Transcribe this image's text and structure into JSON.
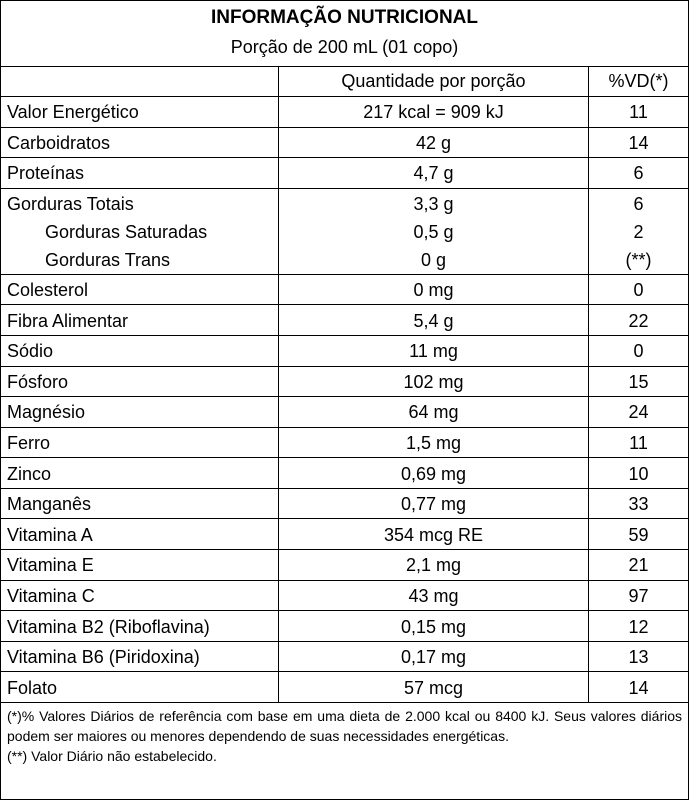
{
  "header": {
    "title": "INFORMAÇÃO NUTRICIONAL",
    "subtitle": "Porção de 200 mL (01 copo)"
  },
  "table": {
    "columns": [
      "Quantidade por porção",
      "%VD(*)"
    ],
    "rows": [
      {
        "label": "Valor Energético",
        "quantity": "217 kcal = 909 kJ",
        "dv": "11"
      },
      {
        "label": "Carboidratos",
        "quantity": "42 g",
        "dv": "14"
      },
      {
        "label": "Proteínas",
        "quantity": "4,7 g",
        "dv": "6"
      },
      {
        "label": "Gorduras Totais",
        "quantity": "3,3 g",
        "dv": "6",
        "sub": [
          {
            "label": "Gorduras Saturadas",
            "quantity": "0,5 g",
            "dv": "2"
          },
          {
            "label": "Gorduras Trans",
            "quantity": "0 g",
            "dv": "(**)"
          }
        ]
      },
      {
        "label": "Colesterol",
        "quantity": "0 mg",
        "dv": "0"
      },
      {
        "label": "Fibra Alimentar",
        "quantity": "5,4 g",
        "dv": "22"
      },
      {
        "label": "Sódio",
        "quantity": "11 mg",
        "dv": "0"
      },
      {
        "label": "Fósforo",
        "quantity": "102 mg",
        "dv": "15"
      },
      {
        "label": "Magnésio",
        "quantity": "64 mg",
        "dv": "24"
      },
      {
        "label": "Ferro",
        "quantity": "1,5 mg",
        "dv": "11"
      },
      {
        "label": "Zinco",
        "quantity": "0,69 mg",
        "dv": "10"
      },
      {
        "label": "Manganês",
        "quantity": "0,77 mg",
        "dv": "33"
      },
      {
        "label": "Vitamina A",
        "quantity": "354 mcg RE",
        "dv": "59"
      },
      {
        "label": "Vitamina E",
        "quantity": "2,1 mg",
        "dv": "21"
      },
      {
        "label": "Vitamina C",
        "quantity": "43 mg",
        "dv": "97"
      },
      {
        "label": "Vitamina B2 (Riboflavina)",
        "quantity": "0,15 mg",
        "dv": "12"
      },
      {
        "label": "Vitamina B6 (Piridoxina)",
        "quantity": "0,17 mg",
        "dv": "13"
      },
      {
        "label": "Folato",
        "quantity": "57 mcg",
        "dv": "14"
      }
    ]
  },
  "footnotes": [
    "(*)% Valores Diários de referência com base em uma dieta de 2.000 kcal ou 8400 kJ. Seus valores diários podem ser maiores ou menores dependendo de suas necessidades energéticas.",
    "(**) Valor Diário não estabelecido."
  ]
}
